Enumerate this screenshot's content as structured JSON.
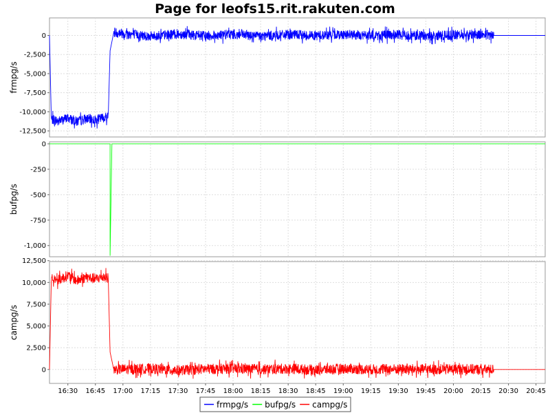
{
  "title": "Page for leofs15.rit.rakuten.com",
  "chart_data": {
    "type": "line",
    "title": "Page for leofs15.rit.rakuten.com",
    "x_range": [
      "16:20",
      "20:50"
    ],
    "x_ticks": [
      "16:30",
      "16:45",
      "17:00",
      "17:15",
      "17:30",
      "17:45",
      "18:00",
      "18:15",
      "18:30",
      "18:45",
      "19:00",
      "19:15",
      "19:30",
      "19:45",
      "20:00",
      "20:15",
      "20:30",
      "20:45"
    ],
    "grid": true,
    "legend_position": "bottom",
    "panels": [
      {
        "name": "frmpg/s",
        "ylabel": "frmpg/s",
        "color": "#0000ff",
        "ylim": [
          -13300,
          2300
        ],
        "y_ticks": [
          0,
          -2500,
          -5000,
          -7500,
          -10000,
          -12500
        ],
        "y_tick_labels": [
          "0",
          "-2,500",
          "-5,000",
          "-7,500",
          "-10,000",
          "-12,500"
        ],
        "series": {
          "name": "frmpg/s",
          "points": [
            [
              "16:20",
              0
            ],
            [
              "16:21",
              -11000
            ],
            [
              "16:25",
              -11200
            ],
            [
              "16:30",
              -10800
            ],
            [
              "16:35",
              -11300
            ],
            [
              "16:40",
              -10900
            ],
            [
              "16:45",
              -11100
            ],
            [
              "16:50",
              -10700
            ],
            [
              "16:52",
              -10600
            ],
            [
              "16:53",
              -2000
            ],
            [
              "16:55",
              400
            ],
            [
              "17:00",
              300
            ],
            [
              "17:15",
              -100
            ],
            [
              "17:30",
              200
            ],
            [
              "17:45",
              -50
            ],
            [
              "18:00",
              150
            ],
            [
              "18:15",
              -100
            ],
            [
              "18:30",
              100
            ],
            [
              "18:45",
              0
            ],
            [
              "19:00",
              150
            ],
            [
              "19:15",
              -50
            ],
            [
              "19:30",
              100
            ],
            [
              "19:45",
              -100
            ],
            [
              "20:00",
              50
            ],
            [
              "20:15",
              150
            ],
            [
              "20:22",
              0
            ],
            [
              "20:50",
              0
            ]
          ],
          "noise_amplitude": 1300,
          "noisy_range": [
            [
              "16:21",
              "16:52"
            ],
            [
              "16:55",
              "20:22"
            ]
          ]
        }
      },
      {
        "name": "bufpg/s",
        "ylabel": "bufpg/s",
        "color": "#00ff00",
        "ylim": [
          -1110,
          20
        ],
        "y_ticks": [
          0,
          -250,
          -500,
          -750,
          -1000
        ],
        "y_tick_labels": [
          "0",
          "-250",
          "-500",
          "-750",
          "-1,000"
        ],
        "series": {
          "name": "bufpg/s",
          "points": [
            [
              "16:20",
              0
            ],
            [
              "16:53",
              0
            ],
            [
              "16:53",
              -1100
            ],
            [
              "16:54",
              0
            ],
            [
              "20:50",
              0
            ]
          ],
          "noise_amplitude": 0,
          "noisy_range": []
        }
      },
      {
        "name": "campg/s",
        "ylabel": "campg/s",
        "color": "#ff0000",
        "ylim": [
          -1600,
          12400
        ],
        "y_ticks": [
          0,
          2500,
          5000,
          7500,
          10000,
          12500
        ],
        "y_tick_labels": [
          "0",
          "2,500",
          "5,000",
          "7,500",
          "10,000",
          "12,500"
        ],
        "series": {
          "name": "campg/s",
          "points": [
            [
              "16:20",
              0
            ],
            [
              "16:21",
              10500
            ],
            [
              "16:25",
              10300
            ],
            [
              "16:30",
              10800
            ],
            [
              "16:35",
              10200
            ],
            [
              "16:40",
              10600
            ],
            [
              "16:45",
              10400
            ],
            [
              "16:50",
              10700
            ],
            [
              "16:52",
              10500
            ],
            [
              "16:53",
              2000
            ],
            [
              "16:55",
              0
            ],
            [
              "17:15",
              100
            ],
            [
              "17:30",
              -100
            ],
            [
              "17:45",
              50
            ],
            [
              "18:00",
              100
            ],
            [
              "18:15",
              0
            ],
            [
              "18:30",
              100
            ],
            [
              "18:45",
              -50
            ],
            [
              "19:00",
              100
            ],
            [
              "19:15",
              0
            ],
            [
              "19:30",
              50
            ],
            [
              "19:45",
              0
            ],
            [
              "20:00",
              50
            ],
            [
              "20:15",
              0
            ],
            [
              "20:22",
              0
            ],
            [
              "20:50",
              0
            ]
          ],
          "noise_amplitude": 1200,
          "noisy_range": [
            [
              "16:21",
              "16:52"
            ],
            [
              "16:55",
              "20:22"
            ]
          ]
        }
      }
    ],
    "legend": [
      {
        "label": "frmpg/s",
        "color": "#0000ff"
      },
      {
        "label": "bufpg/s",
        "color": "#00ff00"
      },
      {
        "label": "campg/s",
        "color": "#ff0000"
      }
    ]
  }
}
